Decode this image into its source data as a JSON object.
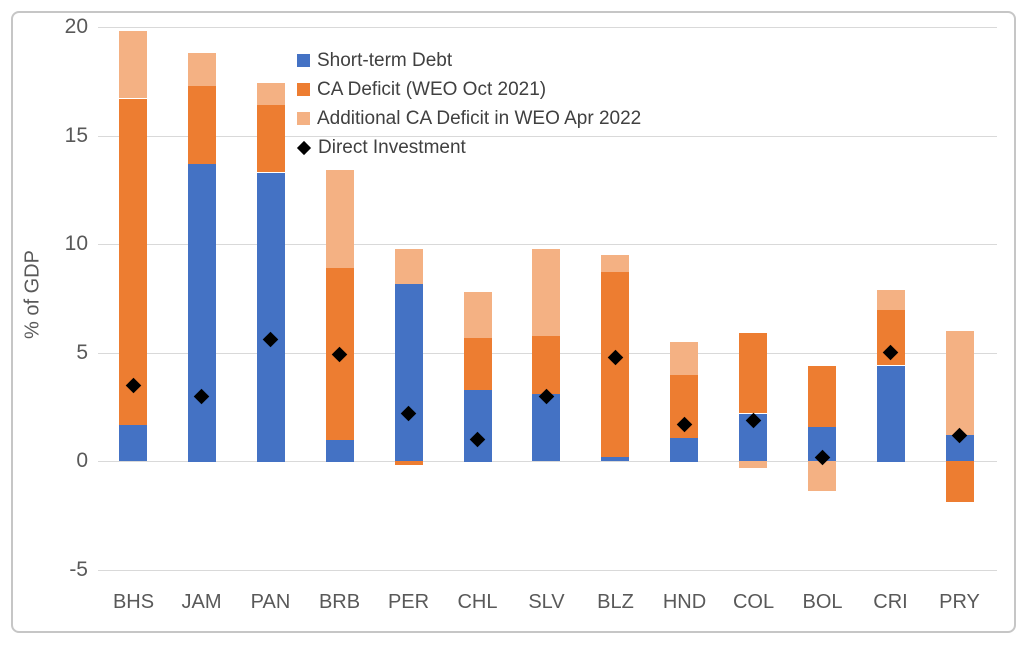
{
  "colors": {
    "short_term_debt": "#4472C4",
    "ca_deficit_oct": "#ED7D31",
    "additional_ca_deficit": "#F4B183",
    "direct_investment": "#000000",
    "gridline": "#D9D9D9",
    "axis_text": "#595959",
    "frame_border": "#C6C6C6"
  },
  "chart_data": {
    "type": "bar",
    "subtype": "stacked-bars-with-scatter-overlay",
    "title": "",
    "xlabel": "",
    "ylabel": "% of GDP",
    "ylim": [
      -5,
      20
    ],
    "yticks": [
      20,
      15,
      10,
      5,
      0,
      -5
    ],
    "grid": true,
    "legend_position": "upper-center",
    "categories": [
      "BHS",
      "JAM",
      "PAN",
      "BRB",
      "PER",
      "CHL",
      "SLV",
      "BLZ",
      "HND",
      "COL",
      "BOL",
      "CRI",
      "PRY"
    ],
    "series": [
      {
        "name": "Short-term Debt",
        "kind": "bar",
        "color": "#4472C4",
        "values": [
          1.7,
          13.7,
          13.3,
          1.0,
          8.2,
          3.3,
          3.1,
          0.2,
          1.1,
          2.2,
          1.6,
          4.4,
          1.2
        ]
      },
      {
        "name": "CA Deficit (WEO Oct 2021)",
        "kind": "bar",
        "color": "#ED7D31",
        "values": [
          15.0,
          3.6,
          3.1,
          7.9,
          -0.2,
          2.4,
          2.7,
          8.5,
          2.9,
          3.7,
          2.8,
          2.6,
          -1.9
        ]
      },
      {
        "name": "Additional CA Deficit in WEO Apr 2022",
        "kind": "bar",
        "color": "#F4B183",
        "values": [
          3.1,
          1.5,
          1.0,
          4.5,
          1.6,
          2.1,
          4.0,
          0.8,
          1.5,
          -0.3,
          -1.4,
          0.9,
          4.8
        ]
      },
      {
        "name": "Direct Investment",
        "kind": "scatter",
        "marker": "diamond",
        "color": "#000000",
        "values": [
          3.5,
          3.0,
          5.6,
          4.9,
          2.2,
          1.0,
          3.0,
          4.8,
          1.7,
          1.9,
          0.2,
          5.0,
          1.2
        ]
      }
    ]
  }
}
